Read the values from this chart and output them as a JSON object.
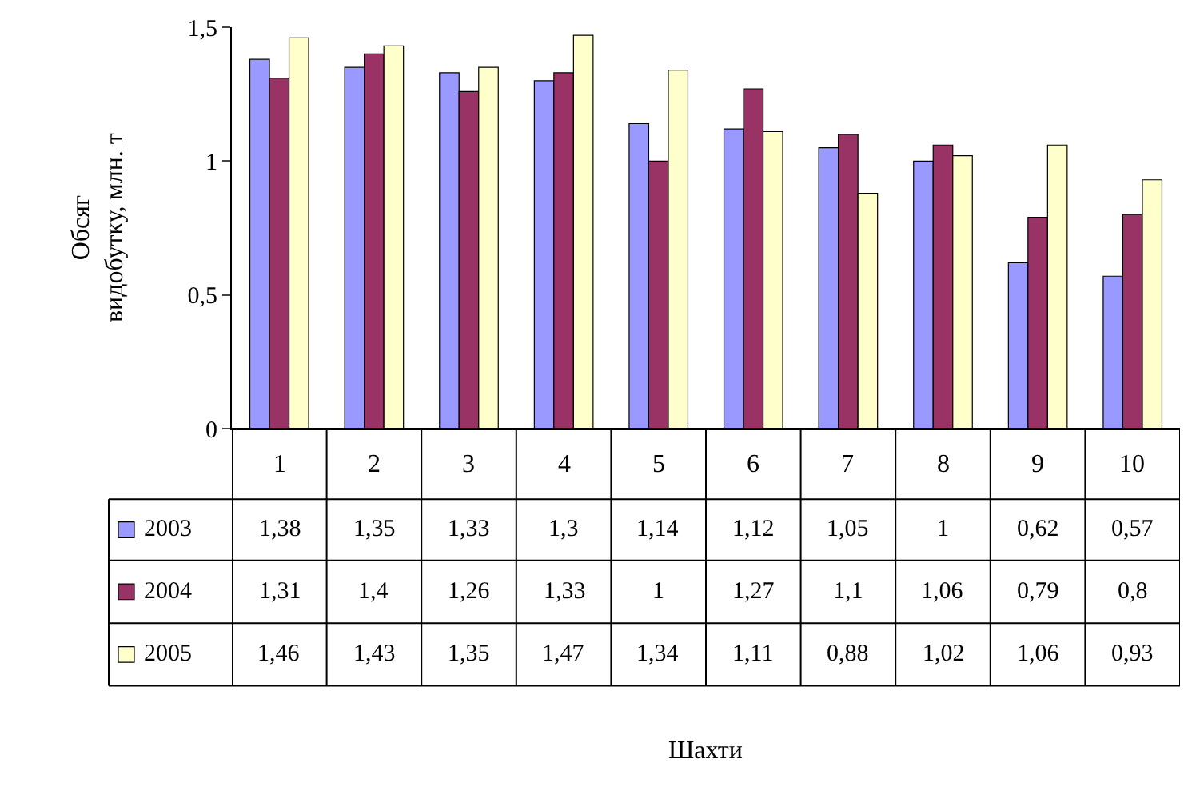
{
  "chart_data": {
    "type": "bar",
    "annotations": [
      "Шахти"
    ],
    "ylabel": "Обсяг видобутку, млн. т",
    "categories": [
      "1",
      "2",
      "3",
      "4",
      "5",
      "6",
      "7",
      "8",
      "9",
      "10"
    ],
    "series": [
      {
        "name": "2003",
        "color": "#9999ff",
        "values": [
          1.38,
          1.35,
          1.33,
          1.3,
          1.14,
          1.12,
          1.05,
          1,
          0.62,
          0.57
        ],
        "value_labels": [
          "1,38",
          "1,35",
          "1,33",
          "1,3",
          "1,14",
          "1,12",
          "1,05",
          "1",
          "0,62",
          "0,57"
        ]
      },
      {
        "name": "2004",
        "color": "#993366",
        "values": [
          1.31,
          1.4,
          1.26,
          1.33,
          1,
          1.27,
          1.1,
          1.06,
          0.79,
          0.8
        ],
        "value_labels": [
          "1,31",
          "1,4",
          "1,26",
          "1,33",
          "1",
          "1,27",
          "1,1",
          "1,06",
          "0,79",
          "0,8"
        ]
      },
      {
        "name": "2005",
        "color": "#ffffcc",
        "values": [
          1.46,
          1.43,
          1.35,
          1.47,
          1.34,
          1.11,
          0.88,
          1.02,
          1.06,
          0.93
        ],
        "value_labels": [
          "1,46",
          "1,43",
          "1,35",
          "1,47",
          "1,34",
          "1,11",
          "0,88",
          "1,02",
          "1,06",
          "0,93"
        ]
      }
    ],
    "ylim": [
      0,
      1.5
    ],
    "yticks": [
      0,
      {
        "value": 0.5,
        "label": "0,5"
      },
      1,
      {
        "value": 1.5,
        "label": "1,5"
      }
    ],
    "grid": false,
    "legend": "bottom"
  }
}
